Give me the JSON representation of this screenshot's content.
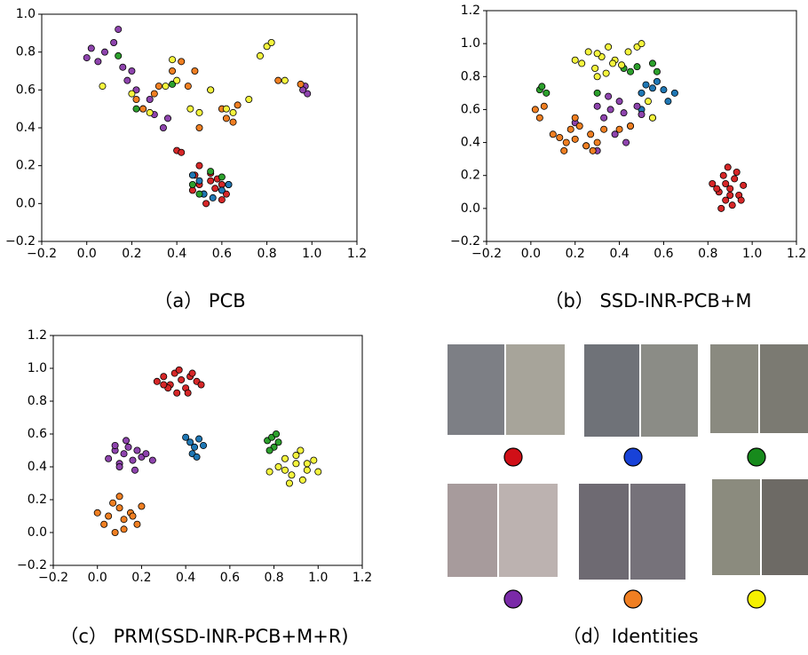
{
  "chart_data": [
    {
      "type": "scatter",
      "title": "（a） PCB",
      "xlim": [
        -0.2,
        1.2
      ],
      "ylim": [
        -0.2,
        1.0
      ],
      "xticks": [
        {
          "value": -0.2,
          "label": "−0.2"
        },
        {
          "value": 0,
          "label": "0.0"
        },
        0.2,
        0.4,
        0.6,
        0.8,
        {
          "value": 1,
          "label": "1.0"
        },
        1.2
      ],
      "yticks": [
        {
          "value": -0.2,
          "label": "−0.2"
        },
        {
          "value": 0,
          "label": "0.0"
        },
        0.2,
        0.4,
        0.6,
        0.8,
        {
          "value": 1,
          "label": "1.0"
        }
      ],
      "series": [
        {
          "color": "#d62728",
          "x": [
            0.4,
            0.42,
            0.48,
            0.5,
            0.52,
            0.55,
            0.57,
            0.6,
            0.62,
            0.5,
            0.53,
            0.58,
            0.63,
            0.47,
            0.55,
            0.6
          ],
          "y": [
            0.28,
            0.27,
            0.15,
            0.1,
            0.05,
            0.12,
            0.08,
            0.1,
            0.05,
            0.2,
            0.0,
            0.13,
            0.1,
            0.07,
            0.16,
            0.02
          ]
        },
        {
          "color": "#1f77b4",
          "x": [
            0.47,
            0.52,
            0.56,
            0.6,
            0.63,
            0.5
          ],
          "y": [
            0.15,
            0.05,
            0.03,
            0.07,
            0.1,
            0.12
          ]
        },
        {
          "color": "#2ca02c",
          "x": [
            0.14,
            0.22,
            0.38,
            0.47,
            0.55,
            0.6,
            0.5
          ],
          "y": [
            0.78,
            0.5,
            0.63,
            0.1,
            0.17,
            0.14,
            0.05
          ]
        },
        {
          "color": "#8e44ad",
          "x": [
            0,
            0.02,
            0.05,
            0.08,
            0.12,
            0.14,
            0.16,
            0.2,
            0.22,
            0.25,
            0.3,
            0.34,
            0.36,
            0.97,
            0.98,
            0.96,
            0.18,
            0.28
          ],
          "y": [
            0.77,
            0.82,
            0.75,
            0.8,
            0.85,
            0.92,
            0.72,
            0.7,
            0.6,
            0.5,
            0.47,
            0.4,
            0.45,
            0.62,
            0.58,
            0.6,
            0.65,
            0.55
          ]
        },
        {
          "color": "#f07f22",
          "x": [
            0.22,
            0.25,
            0.32,
            0.38,
            0.42,
            0.45,
            0.48,
            0.55,
            0.6,
            0.62,
            0.65,
            0.67,
            0.85,
            0.95,
            0.3,
            0.5
          ],
          "y": [
            0.55,
            0.5,
            0.62,
            0.7,
            0.75,
            0.62,
            0.7,
            0.6,
            0.5,
            0.45,
            0.43,
            0.52,
            0.65,
            0.63,
            0.58,
            0.4
          ]
        },
        {
          "color": "#f5f53d",
          "x": [
            0.07,
            0.2,
            0.28,
            0.35,
            0.38,
            0.4,
            0.46,
            0.5,
            0.55,
            0.62,
            0.65,
            0.77,
            0.8,
            0.82,
            0.88,
            0.72
          ],
          "y": [
            0.62,
            0.58,
            0.48,
            0.62,
            0.76,
            0.65,
            0.5,
            0.48,
            0.6,
            0.5,
            0.48,
            0.78,
            0.83,
            0.85,
            0.65,
            0.55
          ]
        }
      ]
    },
    {
      "type": "scatter",
      "title": "（b） SSD-INR-PCB+M",
      "xlim": [
        -0.2,
        1.2
      ],
      "ylim": [
        -0.2,
        1.2
      ],
      "xticks": [
        {
          "value": -0.2,
          "label": "−0.2"
        },
        {
          "value": 0,
          "label": "0.0"
        },
        0.2,
        0.4,
        0.6,
        0.8,
        {
          "value": 1,
          "label": "1.0"
        },
        1.2
      ],
      "yticks": [
        {
          "value": -0.2,
          "label": "−0.2"
        },
        {
          "value": 0,
          "label": "0.0"
        },
        0.2,
        0.4,
        0.6,
        0.8,
        {
          "value": 1,
          "label": "1.0"
        },
        1.2
      ],
      "series": [
        {
          "color": "#d62728",
          "x": [
            0.82,
            0.85,
            0.87,
            0.88,
            0.9,
            0.92,
            0.94,
            0.96,
            0.86,
            0.89,
            0.91,
            0.93,
            0.84,
            0.95,
            0.9,
            0.88
          ],
          "y": [
            0.15,
            0.1,
            0.2,
            0.05,
            0.12,
            0.18,
            0.08,
            0.14,
            0.0,
            0.25,
            0.02,
            0.22,
            0.12,
            0.05,
            0.08,
            0.15
          ]
        },
        {
          "color": "#1f77b4",
          "x": [
            0.5,
            0.52,
            0.55,
            0.57,
            0.6,
            0.62,
            0.65,
            0.5
          ],
          "y": [
            0.7,
            0.75,
            0.73,
            0.77,
            0.72,
            0.65,
            0.7,
            0.6
          ]
        },
        {
          "color": "#2ca02c",
          "x": [
            0.04,
            0.05,
            0.07,
            0.42,
            0.45,
            0.48,
            0.55,
            0.57,
            0.3
          ],
          "y": [
            0.72,
            0.74,
            0.7,
            0.85,
            0.83,
            0.86,
            0.88,
            0.83,
            0.7
          ]
        },
        {
          "color": "#8e44ad",
          "x": [
            0.3,
            0.33,
            0.36,
            0.4,
            0.42,
            0.45,
            0.48,
            0.5,
            0.38,
            0.35,
            0.25,
            0.2,
            0.43,
            0.55,
            0.3
          ],
          "y": [
            0.62,
            0.55,
            0.6,
            0.65,
            0.58,
            0.5,
            0.62,
            0.57,
            0.45,
            0.68,
            0.38,
            0.52,
            0.4,
            0.55,
            0.35
          ]
        },
        {
          "color": "#f07f22",
          "x": [
            0.02,
            0.04,
            0.06,
            0.1,
            0.13,
            0.16,
            0.18,
            0.2,
            0.22,
            0.25,
            0.27,
            0.3,
            0.33,
            0.15,
            0.2,
            0.28,
            0.4,
            0.45
          ],
          "y": [
            0.6,
            0.55,
            0.62,
            0.45,
            0.43,
            0.4,
            0.48,
            0.42,
            0.5,
            0.38,
            0.45,
            0.4,
            0.48,
            0.35,
            0.55,
            0.35,
            0.48,
            0.5
          ]
        },
        {
          "color": "#f5f53d",
          "x": [
            0.2,
            0.23,
            0.26,
            0.29,
            0.32,
            0.35,
            0.38,
            0.41,
            0.44,
            0.3,
            0.34,
            0.37,
            0.48,
            0.5,
            0.53,
            0.55,
            0.3
          ],
          "y": [
            0.9,
            0.88,
            0.95,
            0.85,
            0.92,
            0.98,
            0.9,
            0.87,
            0.95,
            0.8,
            0.82,
            0.88,
            0.98,
            1.0,
            0.65,
            0.55,
            0.94
          ]
        }
      ]
    },
    {
      "type": "scatter",
      "title": "（c） PRM(SSD-INR-PCB+M+R)",
      "xlim": [
        -0.2,
        1.2
      ],
      "ylim": [
        -0.2,
        1.2
      ],
      "xticks": [
        {
          "value": -0.2,
          "label": "−0.2"
        },
        {
          "value": 0,
          "label": "0.0"
        },
        0.2,
        0.4,
        0.6,
        0.8,
        {
          "value": 1,
          "label": "1.0"
        },
        1.2
      ],
      "yticks": [
        {
          "value": -0.2,
          "label": "−0.2"
        },
        {
          "value": 0,
          "label": "0.0"
        },
        0.2,
        0.4,
        0.6,
        0.8,
        {
          "value": 1,
          "label": "1.0"
        },
        1.2
      ],
      "series": [
        {
          "color": "#d62728",
          "x": [
            0.27,
            0.3,
            0.33,
            0.35,
            0.38,
            0.4,
            0.42,
            0.45,
            0.47,
            0.32,
            0.37,
            0.41,
            0.36,
            0.43,
            0.3
          ],
          "y": [
            0.92,
            0.95,
            0.9,
            0.97,
            0.93,
            0.88,
            0.95,
            0.92,
            0.9,
            0.88,
            0.99,
            0.85,
            0.85,
            0.97,
            0.9
          ]
        },
        {
          "color": "#1f77b4",
          "x": [
            0.4,
            0.42,
            0.44,
            0.46,
            0.48,
            0.43,
            0.45
          ],
          "y": [
            0.58,
            0.55,
            0.52,
            0.57,
            0.53,
            0.48,
            0.46
          ]
        },
        {
          "color": "#2ca02c",
          "x": [
            0.77,
            0.79,
            0.8,
            0.82,
            0.78,
            0.81
          ],
          "y": [
            0.56,
            0.58,
            0.52,
            0.55,
            0.5,
            0.6
          ]
        },
        {
          "color": "#8e44ad",
          "x": [
            0.05,
            0.08,
            0.1,
            0.12,
            0.14,
            0.16,
            0.18,
            0.2,
            0.22,
            0.1,
            0.13,
            0.17,
            0.08,
            0.25
          ],
          "y": [
            0.45,
            0.5,
            0.42,
            0.48,
            0.52,
            0.44,
            0.5,
            0.46,
            0.48,
            0.4,
            0.56,
            0.38,
            0.53,
            0.44
          ]
        },
        {
          "color": "#f07f22",
          "x": [
            0.0,
            0.03,
            0.05,
            0.08,
            0.1,
            0.12,
            0.15,
            0.18,
            0.2,
            0.07,
            0.12,
            0.16,
            0.1
          ],
          "y": [
            0.12,
            0.05,
            0.1,
            0.0,
            0.15,
            0.08,
            0.12,
            0.05,
            0.16,
            0.18,
            0.02,
            0.1,
            0.22
          ]
        },
        {
          "color": "#f5f53d",
          "x": [
            0.78,
            0.82,
            0.85,
            0.88,
            0.9,
            0.92,
            0.95,
            0.98,
            1.0,
            0.87,
            0.93,
            0.9,
            0.85,
            0.95
          ],
          "y": [
            0.37,
            0.4,
            0.45,
            0.35,
            0.42,
            0.5,
            0.38,
            0.44,
            0.37,
            0.3,
            0.32,
            0.47,
            0.38,
            0.42
          ]
        }
      ]
    }
  ],
  "identities": {
    "caption": "（d）Identities",
    "colors": [
      "#d00f17",
      "#1842d8",
      "#178a1c",
      "#7a2aa8",
      "#f07f22",
      "#f5f000"
    ]
  }
}
